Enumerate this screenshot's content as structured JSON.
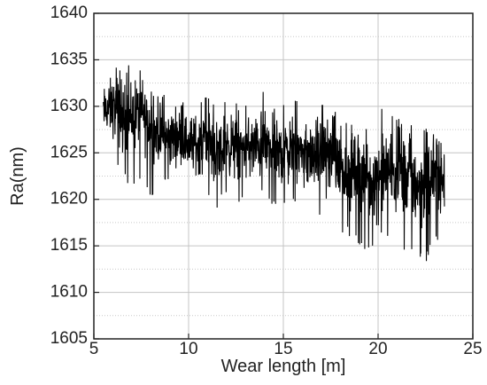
{
  "chart_data": {
    "type": "line",
    "title": "",
    "xlabel": "Wear length [m]",
    "ylabel": "Ra(nm)",
    "xlim": [
      5,
      25
    ],
    "ylim": [
      1605,
      1640
    ],
    "x_ticks": [
      "5",
      "10",
      "15",
      "20",
      "25"
    ],
    "y_ticks": [
      "1605",
      "1610",
      "1615",
      "1620",
      "1625",
      "1630",
      "1635",
      "1640"
    ],
    "grid": true,
    "legend": "none",
    "series_color": "#000000",
    "series": [
      {
        "x": [
          5.5,
          6.0,
          6.5,
          7.0,
          7.5,
          8.0,
          8.5,
          9.0,
          9.5,
          10.0,
          10.5,
          11.0,
          11.5,
          12.0,
          12.5,
          13.0,
          13.5,
          14.0,
          14.5,
          15.0,
          15.5,
          16.0,
          16.5,
          17.0,
          17.5,
          18.0,
          18.5,
          19.0,
          19.5,
          20.0,
          20.5,
          21.0,
          21.5,
          22.0,
          22.5,
          23.0,
          23.5
        ],
        "y": [
          1629.5,
          1630.0,
          1628.5,
          1629.0,
          1629.5,
          1627.5,
          1627.0,
          1626.5,
          1627.0,
          1626.0,
          1626.0,
          1626.5,
          1625.0,
          1626.0,
          1625.5,
          1625.5,
          1625.5,
          1626.0,
          1625.0,
          1625.0,
          1625.5,
          1625.0,
          1624.5,
          1625.5,
          1624.5,
          1623.5,
          1623.0,
          1623.5,
          1622.0,
          1622.5,
          1623.0,
          1622.5,
          1622.5,
          1621.5,
          1622.0,
          1622.5,
          1622.0
        ],
        "band_low": [
          1626,
          1624,
          1622,
          1621,
          1622,
          1620,
          1622,
          1621,
          1622,
          1621,
          1620,
          1620,
          1619,
          1620,
          1620,
          1619,
          1620,
          1620,
          1619,
          1619,
          1619,
          1618,
          1618,
          1618,
          1617,
          1616,
          1616,
          1615,
          1614,
          1615,
          1616,
          1615,
          1614,
          1613,
          1613,
          1615,
          1617
        ],
        "band_high": [
          1634,
          1635,
          1634,
          1635,
          1635,
          1632,
          1632,
          1632,
          1631,
          1631,
          1631,
          1632,
          1631,
          1631,
          1631,
          1630,
          1632,
          1632,
          1630,
          1631,
          1631,
          1630,
          1629,
          1631,
          1630,
          1629,
          1628,
          1629,
          1628,
          1630,
          1630,
          1629,
          1628,
          1628,
          1628,
          1627,
          1626
        ]
      }
    ]
  }
}
